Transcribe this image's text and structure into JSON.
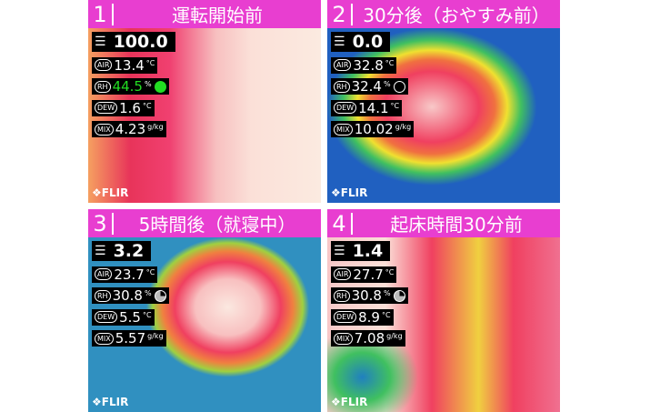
{
  "brand": "FLIR",
  "labels": {
    "air": "AIR",
    "rh": "RH",
    "dew": "DEW",
    "mix": "MIX",
    "deg": "°C",
    "pct": "%",
    "gkg": "g/kg"
  },
  "panels": [
    {
      "number": "1",
      "title": "運転開始前",
      "index": "100.0",
      "air": "13.4",
      "rh": "44.5",
      "dew": "1.6",
      "mix": "4.23",
      "rh_color": "#22dd22",
      "rh_indicator": "full-green"
    },
    {
      "number": "2",
      "title": "30分後（おやすみ前）",
      "index": "0.0",
      "air": "32.8",
      "rh": "32.4",
      "dew": "14.1",
      "mix": "10.02",
      "rh_color": "#ffffff",
      "rh_indicator": "empty"
    },
    {
      "number": "3",
      "title": "5時間後（就寝中）",
      "index": "3.2",
      "air": "23.7",
      "rh": "30.8",
      "dew": "5.5",
      "mix": "5.57",
      "rh_color": "#ffffff",
      "rh_indicator": "partial"
    },
    {
      "number": "4",
      "title": "起床時間30分前",
      "index": "1.4",
      "air": "27.7",
      "rh": "30.8",
      "dew": "8.9",
      "mix": "7.08",
      "rh_color": "#ffffff",
      "rh_indicator": "partial"
    }
  ],
  "colors": {
    "header": "#e83ed0"
  }
}
